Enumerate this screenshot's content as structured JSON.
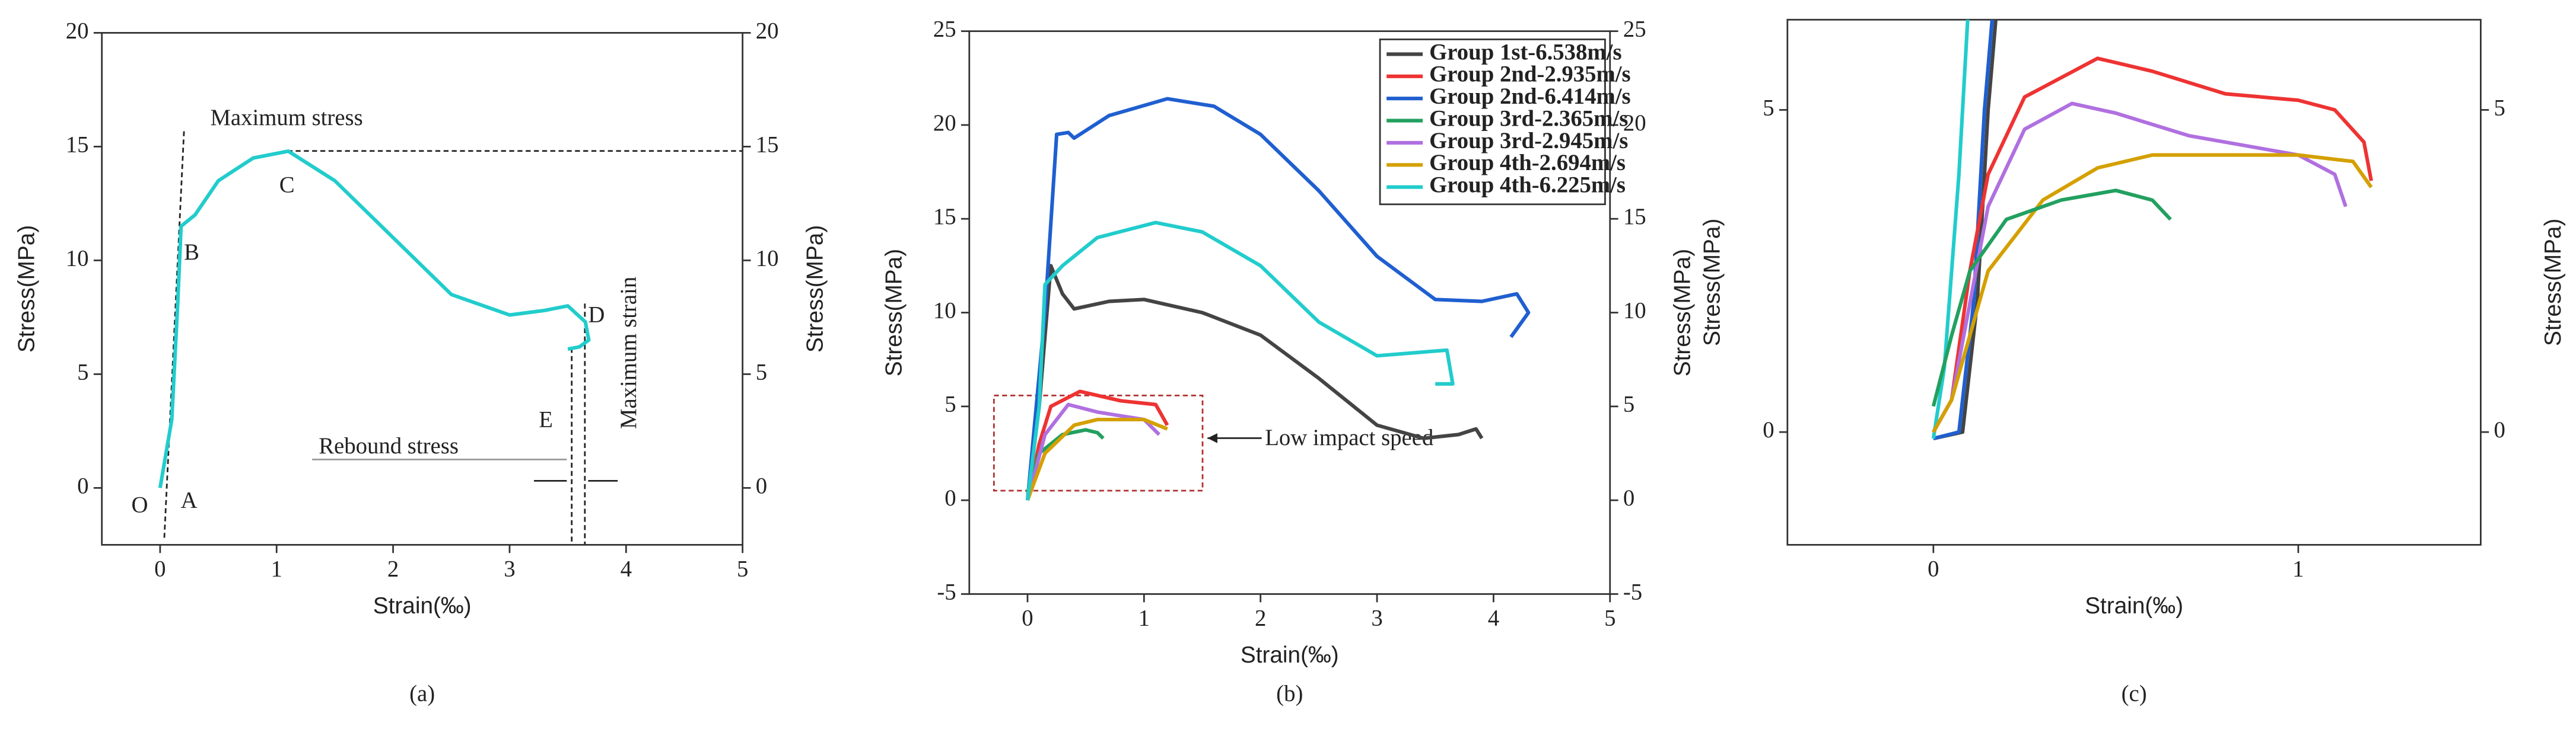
{
  "chart_data": [
    {
      "type": "line",
      "panel_label": "(a)",
      "xlabel": "Strain(‰)",
      "ylabel": "Stress(MPa)",
      "y2label": "Stress(MPa)",
      "xlim": [
        -0.5,
        5
      ],
      "ylim": [
        -2.5,
        20
      ],
      "xticks": [
        0,
        1,
        2,
        3,
        4,
        5
      ],
      "yticks": [
        0,
        5,
        10,
        15,
        20
      ],
      "y2lim": [
        -2.5,
        20
      ],
      "y2ticks": [
        0,
        5,
        10,
        15,
        20
      ],
      "annotations": [
        "Maximum stress",
        "Maximum strain",
        "Rebound stress",
        "O",
        "A",
        "B",
        "C",
        "D",
        "E"
      ],
      "series": [
        {
          "color": "#22cccc",
          "x": [
            0,
            0.1,
            0.15,
            0.18,
            0.3,
            0.5,
            0.8,
            1.1,
            1.5,
            2,
            2.5,
            3,
            3.3,
            3.5,
            3.65,
            3.68,
            3.6,
            3.5
          ],
          "values": [
            0,
            3,
            8,
            11.5,
            12,
            13.5,
            14.5,
            14.8,
            13.5,
            11,
            8.5,
            7.6,
            7.8,
            8,
            7.3,
            6.5,
            6.2,
            6.1
          ]
        }
      ]
    },
    {
      "type": "line",
      "panel_label": "(b)",
      "xlabel": "Strain(‰)",
      "ylabel": "Stress(MPa)",
      "y2label": "Stress(MPa)",
      "xlim": [
        -0.5,
        5
      ],
      "ylim": [
        -5,
        25
      ],
      "xticks": [
        0,
        1,
        2,
        3,
        4,
        5
      ],
      "yticks": [
        -5,
        0,
        5,
        10,
        15,
        20,
        25
      ],
      "y2lim": [
        -5,
        25
      ],
      "y2ticks": [
        -5,
        0,
        5,
        10,
        15,
        20,
        25
      ],
      "annotations": [
        "Low impact speed"
      ],
      "legend": "upper right",
      "series": [
        {
          "name": "Group 1st-6.538m/s",
          "color": "#444444",
          "x": [
            0,
            0.1,
            0.2,
            0.3,
            0.4,
            0.7,
            1,
            1.5,
            2,
            2.5,
            3,
            3.4,
            3.7,
            3.85,
            3.9
          ],
          "values": [
            0,
            5,
            12.5,
            11,
            10.2,
            10.6,
            10.7,
            10,
            8.8,
            6.5,
            4,
            3.3,
            3.5,
            3.8,
            3.3
          ]
        },
        {
          "name": "Group 2nd-2.935m/s",
          "color": "#ee3333",
          "x": [
            0,
            0.1,
            0.2,
            0.45,
            0.8,
            1.1,
            1.2
          ],
          "values": [
            0,
            3,
            5,
            5.8,
            5.3,
            5.1,
            4
          ]
        },
        {
          "name": "Group 2nd-6.414m/s",
          "color": "#1f5fd0",
          "x": [
            0,
            0.15,
            0.25,
            0.35,
            0.4,
            0.7,
            1.2,
            1.6,
            2,
            2.5,
            3,
            3.5,
            3.9,
            4.2,
            4.3,
            4.15
          ],
          "values": [
            0,
            10,
            19.5,
            19.6,
            19.3,
            20.5,
            21.4,
            21,
            19.5,
            16.5,
            13,
            10.7,
            10.6,
            11,
            10,
            8.7
          ]
        },
        {
          "name": "Group 3rd-2.365m/s",
          "color": "#22a060",
          "x": [
            0,
            0.1,
            0.3,
            0.5,
            0.6,
            0.65
          ],
          "values": [
            0.4,
            2.5,
            3.5,
            3.75,
            3.6,
            3.3
          ]
        },
        {
          "name": "Group 3rd-2.945m/s",
          "color": "#b070e0",
          "x": [
            0,
            0.15,
            0.35,
            0.6,
            1,
            1.13
          ],
          "values": [
            0,
            3.5,
            5.1,
            4.7,
            4.3,
            3.5
          ]
        },
        {
          "name": "Group 4th-2.694m/s",
          "color": "#d4a000",
          "x": [
            0,
            0.15,
            0.4,
            0.6,
            1,
            1.2
          ],
          "values": [
            0,
            2.5,
            4,
            4.3,
            4.3,
            3.8
          ]
        },
        {
          "name": "Group 4th-6.225m/s",
          "color": "#22cccc",
          "x": [
            0,
            0.1,
            0.15,
            0.3,
            0.6,
            1.1,
            1.5,
            2,
            2.5,
            3,
            3.4,
            3.6,
            3.65,
            3.5
          ],
          "values": [
            0,
            5,
            11.5,
            12.5,
            14,
            14.8,
            14.3,
            12.5,
            9.5,
            7.7,
            7.9,
            8,
            6.2,
            6.2
          ]
        }
      ]
    },
    {
      "type": "line",
      "panel_label": "(c)",
      "xlabel": "Strain(‰)",
      "ylabel": "Stress(MPa)",
      "y2label": "Stress(MPa)",
      "xlim": [
        -0.4,
        1.5
      ],
      "ylim": [
        -1.75,
        6.4
      ],
      "xticks": [
        0,
        1
      ],
      "yticks": [
        0,
        5
      ],
      "y2lim": [
        -1.75,
        6.4
      ],
      "y2ticks": [
        0,
        5
      ],
      "series": [
        {
          "color": "#444444",
          "x": [
            0,
            0.08,
            0.12,
            0.15,
            0.18
          ],
          "values": [
            -0.1,
            0,
            2,
            5,
            7
          ]
        },
        {
          "color": "#1f5fd0",
          "x": [
            0,
            0.07,
            0.11,
            0.14,
            0.17
          ],
          "values": [
            -0.1,
            0,
            2,
            5,
            7
          ]
        },
        {
          "color": "#22cccc",
          "x": [
            0,
            0.03,
            0.07,
            0.1
          ],
          "values": [
            -0.1,
            1,
            4,
            7
          ]
        },
        {
          "color": "#ee3333",
          "x": [
            0,
            0.05,
            0.1,
            0.15,
            0.25,
            0.45,
            0.6,
            0.8,
            1,
            1.1,
            1.18,
            1.2
          ],
          "values": [
            0,
            0.5,
            2.5,
            4,
            5.2,
            5.8,
            5.6,
            5.25,
            5.15,
            5,
            4.5,
            3.9
          ]
        },
        {
          "color": "#b070e0",
          "x": [
            0,
            0.05,
            0.15,
            0.25,
            0.38,
            0.5,
            0.7,
            1,
            1.1,
            1.13
          ],
          "values": [
            0,
            0.5,
            3.5,
            4.7,
            5.1,
            4.95,
            4.6,
            4.3,
            4,
            3.5
          ]
        },
        {
          "color": "#d4a000",
          "x": [
            0,
            0.05,
            0.15,
            0.3,
            0.45,
            0.6,
            0.8,
            1,
            1.15,
            1.2
          ],
          "values": [
            0,
            0.5,
            2.5,
            3.6,
            4.1,
            4.3,
            4.3,
            4.3,
            4.2,
            3.8
          ]
        },
        {
          "color": "#22a060",
          "x": [
            0,
            0.05,
            0.1,
            0.2,
            0.35,
            0.5,
            0.6,
            0.65
          ],
          "values": [
            0.4,
            1.5,
            2.5,
            3.3,
            3.6,
            3.75,
            3.6,
            3.3
          ]
        }
      ]
    }
  ]
}
